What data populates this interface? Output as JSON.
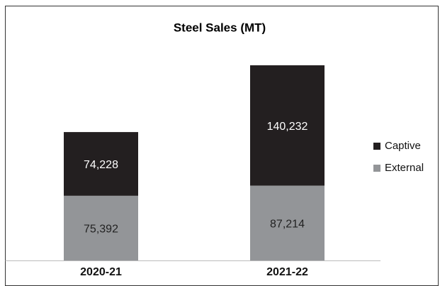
{
  "chart_data": {
    "type": "stacked_bar",
    "title": "Steel Sales (MT)",
    "categories": [
      "2020-21",
      "2021-22"
    ],
    "series": [
      {
        "name": "External",
        "color": "#939598",
        "values": [
          75392,
          87214
        ],
        "value_labels": [
          "75,392",
          "87,214"
        ]
      },
      {
        "name": "Captive",
        "color": "#231f20",
        "values": [
          74228,
          140232
        ],
        "value_labels": [
          "74,228",
          "140,232"
        ]
      }
    ],
    "legend": "right"
  }
}
